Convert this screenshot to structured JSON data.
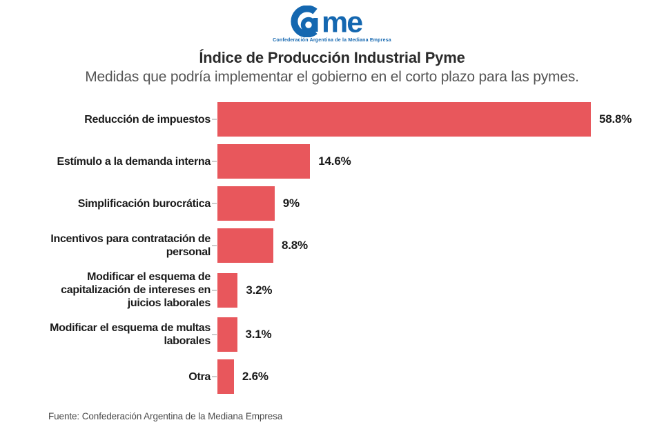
{
  "logo": {
    "text": "Came",
    "tagline": "Confederación Argentina de la Mediana Empresa",
    "color": "#1467B0"
  },
  "chart_data": {
    "type": "bar",
    "orientation": "horizontal",
    "title": "Índice de Producción Industrial Pyme",
    "subtitle": "Medidas que podría implementar el gobierno en el corto plazo para las pymes.",
    "categories": [
      "Reducción de impuestos",
      "Estímulo a la demanda interna",
      "Simplificación burocrática",
      "Incentivos para contratación de personal",
      "Modificar el esquema de capitalización de intereses en juicios laborales",
      "Modificar el esquema de multas laborales",
      "Otra"
    ],
    "display_labels": [
      "Reducción de impuestos",
      "Estímulo a la demanda interna",
      "Simplificación burocrática",
      "Incentivos para contratación de\npersonal",
      "Modificar el esquema de\ncapitalización de intereses en\njuicios laborales",
      "Modificar el esquema de multas\nlaborales",
      "Otra"
    ],
    "values": [
      58.8,
      14.6,
      9,
      8.8,
      3.2,
      3.1,
      2.6
    ],
    "value_labels": [
      "58.8%",
      "14.6%",
      "9%",
      "8.8%",
      "3.2%",
      "3.1%",
      "2.6%"
    ],
    "xlim": [
      0,
      60
    ],
    "bar_color": "#E8575C",
    "leader_color": "#cccccc",
    "grid": false,
    "legend": false
  },
  "footer": {
    "source": "Fuente: Confederación Argentina de la Mediana Empresa"
  }
}
